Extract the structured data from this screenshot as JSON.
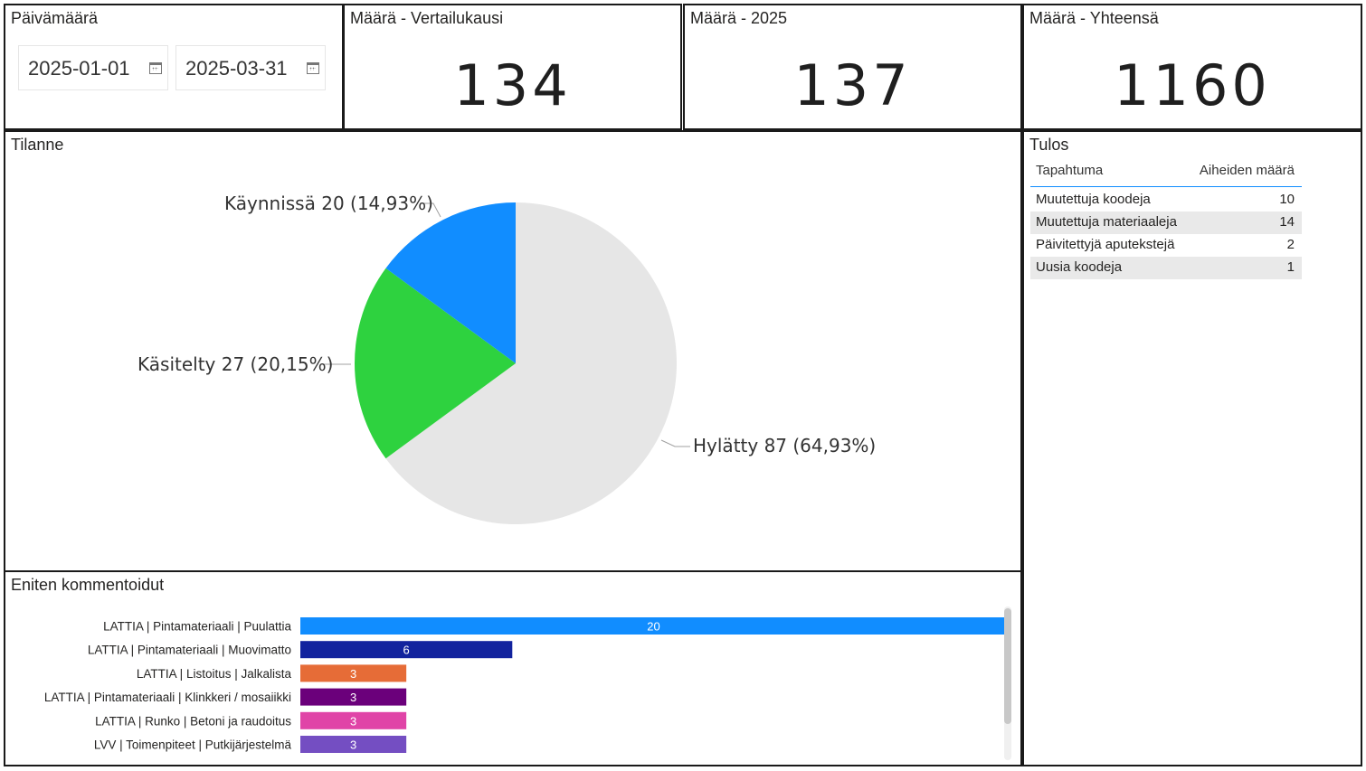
{
  "date_slicer": {
    "title": "Päivämäärä",
    "start": "2025-01-01",
    "end": "2025-03-31",
    "icon": "calendar-icon"
  },
  "kpis": [
    {
      "title": "Määrä - Vertailukausi",
      "value": "134"
    },
    {
      "title": "Määrä - 2025",
      "value": "137"
    },
    {
      "title": "Määrä - Yhteensä",
      "value": "1160"
    }
  ],
  "pie": {
    "title": "Tilanne",
    "labels": [
      "Hylätty 87 (64,93%)",
      "Käsitelty 27 (20,15%)",
      "Käynnissä 20 (14,93%)"
    ]
  },
  "table": {
    "title": "Tulos",
    "headers": [
      "Tapahtuma",
      "Aiheiden määrä"
    ],
    "rows": [
      {
        "name": "Muutettuja koodeja",
        "value": "10"
      },
      {
        "name": "Muutettuja materiaaleja",
        "value": "14"
      },
      {
        "name": "Päivitettyjä aputekstejä",
        "value": "2"
      },
      {
        "name": "Uusia koodeja",
        "value": "1"
      }
    ]
  },
  "bars": {
    "title": "Eniten kommentoidut"
  },
  "chart_data": [
    {
      "type": "pie",
      "title": "Tilanne",
      "categories": [
        "Hylätty",
        "Käsitelty",
        "Käynnissä"
      ],
      "values": [
        87,
        27,
        20
      ],
      "percentages": [
        64.93,
        20.15,
        14.93
      ],
      "colors": [
        "#e6e6e6",
        "#2ed23f",
        "#118dff"
      ],
      "legend": "none (data labels outside slices)"
    },
    {
      "type": "bar",
      "orientation": "horizontal",
      "title": "Eniten kommentoidut",
      "categories": [
        "LATTIA | Pintamateriaali | Puulattia",
        "LATTIA | Pintamateriaali | Muovimatto",
        "LATTIA | Listoitus | Jalkalista",
        "LATTIA | Pintamateriaali | Klinkkeri / mosaiikki",
        "LATTIA | Runko | Betoni ja raudoitus",
        "LVV | Toimenpiteet | Putkijärjestelmä"
      ],
      "values": [
        20,
        6,
        3,
        3,
        3,
        3
      ],
      "colors": [
        "#118dff",
        "#12239e",
        "#e66c37",
        "#6b007b",
        "#e044a7",
        "#744ec2"
      ],
      "xlim": [
        0,
        20
      ],
      "grid": false
    }
  ]
}
